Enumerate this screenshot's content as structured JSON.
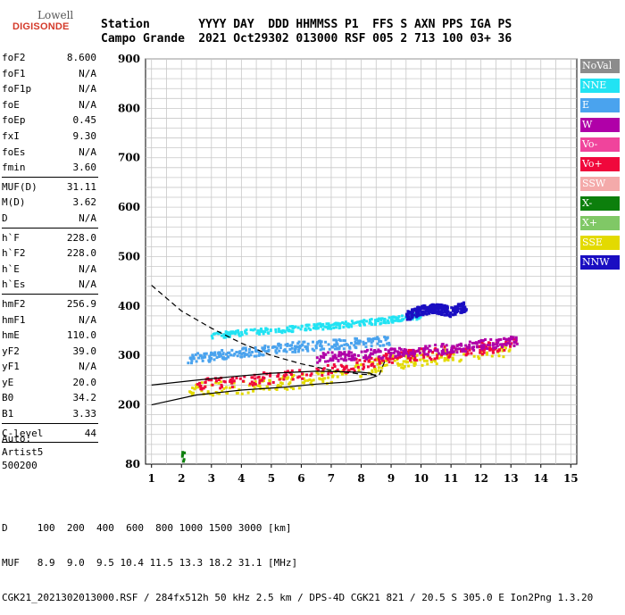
{
  "logo": {
    "line1": "Lowell",
    "line2": "DIGISONDE"
  },
  "header": {
    "labels": [
      "Station",
      "YYYY",
      "DAY",
      "DDD",
      "HHMMSS",
      "P1",
      "FFS",
      "S",
      "AXN",
      "PPS",
      "IGA",
      "PS"
    ],
    "values": [
      "Campo Grande",
      "2021",
      "Oct29",
      "302",
      "013000",
      "RSF",
      "005",
      "2",
      "713",
      "100",
      "03+",
      "36"
    ]
  },
  "params": {
    "group1": [
      [
        "foF2",
        "8.600"
      ],
      [
        "foF1",
        "N/A"
      ],
      [
        "foF1p",
        "N/A"
      ],
      [
        "foE",
        "N/A"
      ],
      [
        "foEp",
        "0.45"
      ],
      [
        "fxI",
        "9.30"
      ],
      [
        "foEs",
        "N/A"
      ],
      [
        "fmin",
        "3.60"
      ]
    ],
    "group2": [
      [
        "MUF(D)",
        "31.11"
      ],
      [
        "M(D)",
        "3.62"
      ],
      [
        "D",
        "N/A"
      ]
    ],
    "group3": [
      [
        "h`F",
        "228.0"
      ],
      [
        "h`F2",
        "228.0"
      ],
      [
        "h`E",
        "N/A"
      ],
      [
        "h`Es",
        "N/A"
      ]
    ],
    "group4": [
      [
        "hmF2",
        "256.9"
      ],
      [
        "hmF1",
        "N/A"
      ],
      [
        "hmE",
        "110.0"
      ],
      [
        "yF2",
        "39.0"
      ],
      [
        "yF1",
        "N/A"
      ],
      [
        "yE",
        "20.0"
      ],
      [
        "B0",
        "34.2"
      ],
      [
        "B1",
        "3.33"
      ]
    ],
    "group5": [
      [
        "C-level",
        "44"
      ]
    ]
  },
  "auto": {
    "line1": "Auto:",
    "line2": "Artist5",
    "line3": "500200"
  },
  "legend": [
    {
      "label": "NoVal",
      "color": "#8c8c8c"
    },
    {
      "label": "NNE",
      "color": "#22e3f3"
    },
    {
      "label": "E",
      "color": "#4aa3ee"
    },
    {
      "label": "W",
      "color": "#b000a8"
    },
    {
      "label": "Vo-",
      "color": "#f0449c"
    },
    {
      "label": "Vo+",
      "color": "#f0083c"
    },
    {
      "label": "SSW",
      "color": "#f4aaaa"
    },
    {
      "label": "X-",
      "color": "#0c7f0c"
    },
    {
      "label": "X+",
      "color": "#80c866"
    },
    {
      "label": "SSE",
      "color": "#e3da00"
    },
    {
      "label": "NNW",
      "color": "#1a0ec2"
    }
  ],
  "footer": {
    "line1": "D     100  200  400  600  800 1000 1500 3000 [km]",
    "line2": "MUF   8.9  9.0  9.5 10.4 11.5 13.3 18.2 31.1 [MHz]",
    "line3": "CGK21_2021302013000.RSF / 284fx512h 50 kHz 2.5 km / DPS-4D CGK21 821 / 20.5 S 305.0 E Ion2Png 1.3.20"
  },
  "chart_data": {
    "type": "scatter",
    "xlim": [
      0.8,
      15.2
    ],
    "ylim": [
      80,
      900
    ],
    "xticks": [
      1,
      2,
      3,
      4,
      5,
      6,
      7,
      8,
      9,
      10,
      11,
      12,
      13,
      14,
      15
    ],
    "yticks": [
      80,
      200,
      300,
      400,
      500,
      600,
      700,
      800,
      900
    ],
    "grid": true,
    "echo_bands": [
      {
        "name": "SSE",
        "color": "#e3da00",
        "x": [
          2.2,
          3.0,
          4.0,
          5.0,
          6.0,
          7.0,
          7.8,
          8.5,
          9.0,
          10.0,
          11.0,
          12.0,
          13.0
        ],
        "y": [
          230,
          232,
          236,
          242,
          248,
          258,
          268,
          280,
          285,
          292,
          300,
          306,
          312
        ]
      },
      {
        "name": "Vo+",
        "color": "#f0083c",
        "x": [
          2.5,
          3.5,
          4.5,
          5.5,
          6.5,
          7.5,
          8.5,
          9.5,
          10.5,
          11.5,
          12.5,
          13.2
        ],
        "y": [
          242,
          246,
          252,
          258,
          266,
          276,
          290,
          300,
          305,
          310,
          318,
          322
        ]
      },
      {
        "name": "W",
        "color": "#b000a8",
        "x": [
          6.5,
          7.5,
          8.5,
          9.5,
          10.5,
          11.5,
          12.5,
          13.2
        ],
        "y": [
          295,
          300,
          302,
          308,
          312,
          318,
          325,
          330
        ]
      },
      {
        "name": "E",
        "color": "#4aa3ee",
        "x": [
          2.2,
          3.0,
          4.0,
          5.0,
          6.0,
          7.0,
          8.0,
          9.0
        ],
        "y": [
          292,
          298,
          305,
          312,
          318,
          322,
          325,
          330
        ]
      },
      {
        "name": "NNE",
        "color": "#22e3f3",
        "x": [
          3.0,
          4.0,
          5.0,
          6.0,
          7.0,
          8.0,
          9.0,
          10.0
        ],
        "y": [
          340,
          345,
          350,
          355,
          360,
          365,
          372,
          380
        ]
      },
      {
        "name": "NNW",
        "color": "#1a0ec2",
        "x": [
          9.5,
          10.0,
          10.5,
          11.0,
          11.5
        ],
        "y": [
          380,
          390,
          395,
          388,
          400
        ]
      },
      {
        "name": "X-",
        "color": "#0c7f0c",
        "x": [
          2.0,
          2.1
        ],
        "y": [
          95,
          95
        ]
      }
    ],
    "profile_curve": {
      "x": [
        1.0,
        2.5,
        4.0,
        5.5,
        6.5,
        7.5,
        8.2,
        8.5,
        8.3,
        8.0,
        6.5,
        5.0,
        3.5,
        2.5,
        1.0
      ],
      "y": [
        200,
        220,
        230,
        236,
        242,
        246,
        252,
        258,
        264,
        266,
        268,
        264,
        256,
        250,
        240
      ]
    },
    "upper_dashed": {
      "x": [
        1.0,
        2.0,
        3.0,
        4.0,
        5.0,
        6.0,
        7.0,
        8.0,
        8.6,
        8.8
      ],
      "y": [
        442,
        390,
        355,
        325,
        300,
        283,
        270,
        262,
        260,
        290
      ]
    }
  }
}
